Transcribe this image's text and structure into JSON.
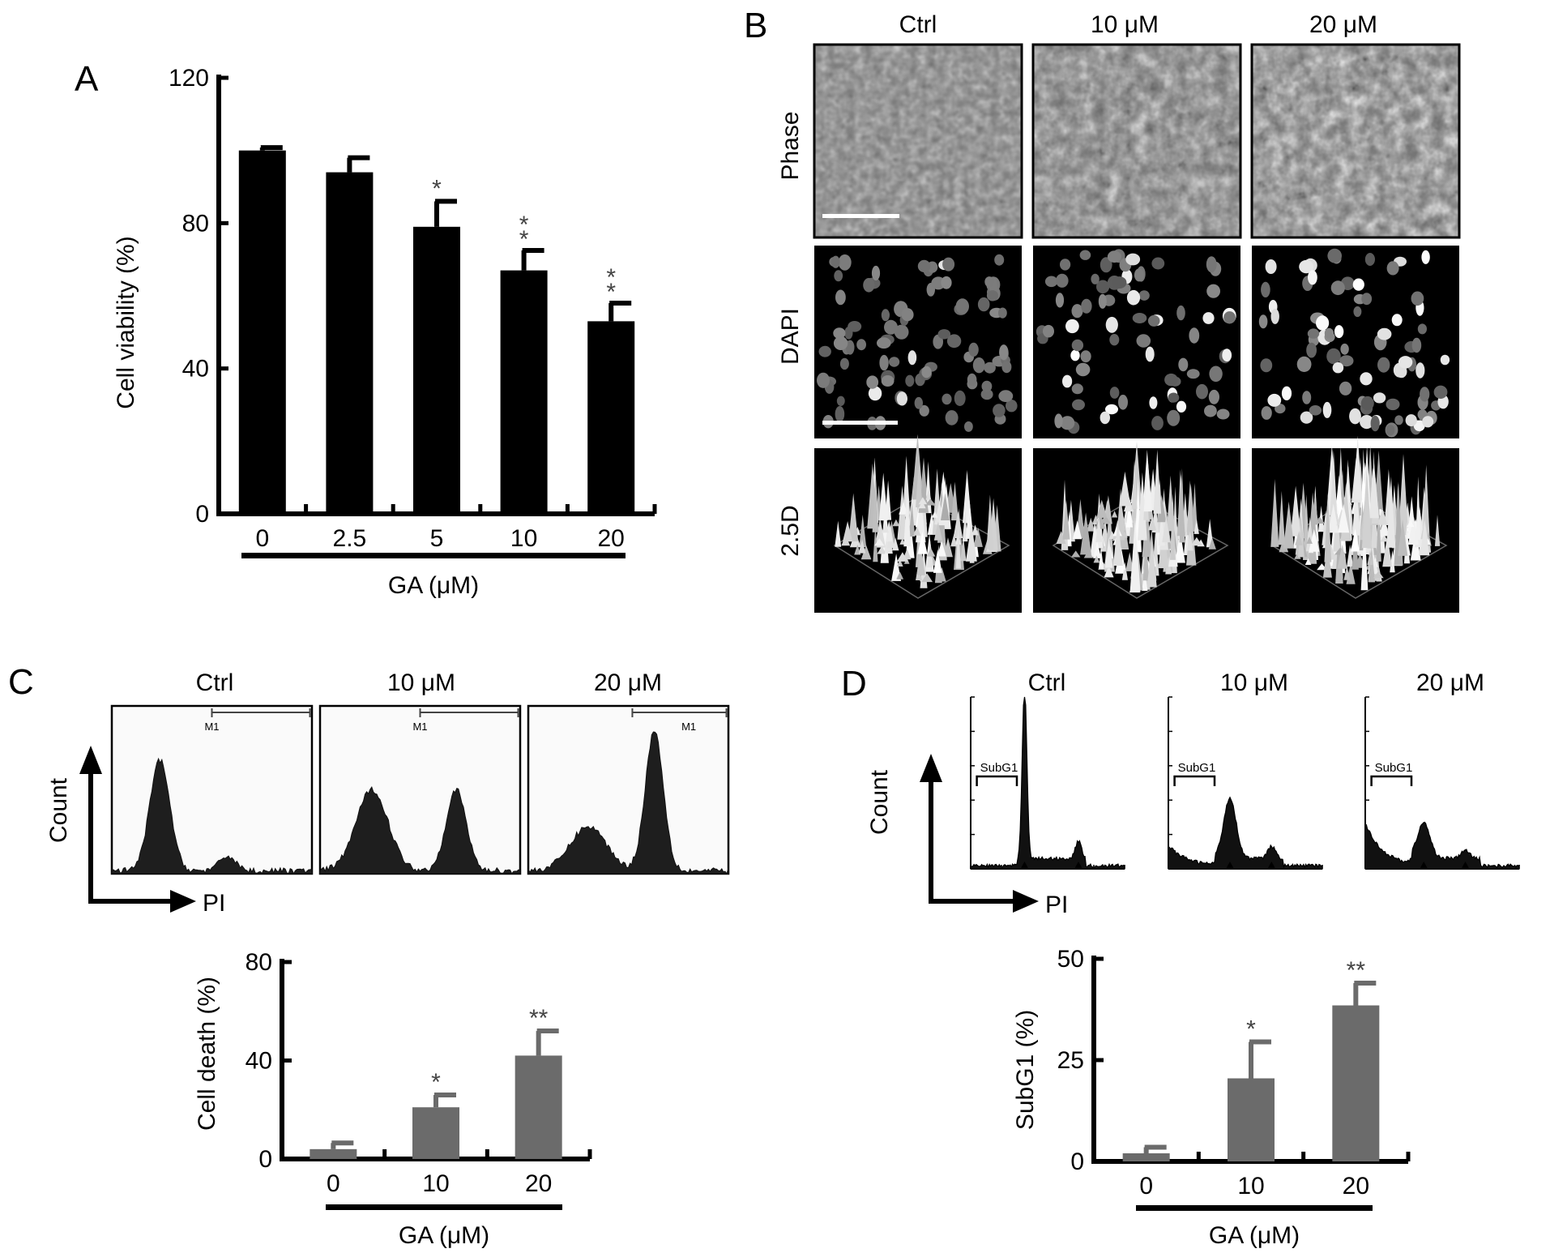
{
  "panel_letters": {
    "a": "A",
    "b": "B",
    "c": "C",
    "d": "D"
  },
  "x_group_label": "GA (μM)",
  "chart_data": [
    {
      "panel": "A",
      "type": "bar",
      "ylabel": "Cell viability (%)",
      "xlabel": "GA (μM)",
      "ylim": [
        0,
        120
      ],
      "yticks": [
        0,
        40,
        80,
        120
      ],
      "categories": [
        "0",
        "2.5",
        "5",
        "10",
        "20"
      ],
      "values": [
        100,
        94,
        79,
        67,
        53
      ],
      "errors": [
        0.8,
        4,
        7,
        5.5,
        5
      ],
      "significance": [
        "",
        "",
        "*",
        "**",
        "**"
      ],
      "sig_stacked": true,
      "bar_color": "#000000"
    },
    {
      "panel": "C",
      "type": "bar",
      "ylabel": "Cell death (%)",
      "xlabel": "GA (μM)",
      "ylim": [
        0,
        80
      ],
      "yticks": [
        0,
        40,
        80
      ],
      "categories": [
        "0",
        "10",
        "20"
      ],
      "values": [
        4,
        21,
        42
      ],
      "errors": [
        2.5,
        5,
        10
      ],
      "significance": [
        "",
        "*",
        "**"
      ],
      "sig_stacked": false,
      "bar_color": "#6b6b6b"
    },
    {
      "panel": "D",
      "type": "bar",
      "ylabel": "SubG1 (%)",
      "xlabel": "GA (μM)",
      "ylim": [
        0,
        50
      ],
      "yticks": [
        0,
        25,
        50
      ],
      "categories": [
        "0",
        "10",
        "20"
      ],
      "values": [
        2,
        20.5,
        38.5
      ],
      "errors": [
        1.5,
        9,
        5.5
      ],
      "significance": [
        "",
        "*",
        "**"
      ],
      "sig_stacked": false,
      "bar_color": "#6b6b6b"
    }
  ],
  "panel_b": {
    "columns": [
      "Ctrl",
      "10 μM",
      "20 μM"
    ],
    "rows": [
      "Phase",
      "DAPI",
      "2.5D"
    ]
  },
  "panel_c_histograms": {
    "titles": [
      "Ctrl",
      "10 μM",
      "20 μM"
    ],
    "gate_label": "M1",
    "y_axis": "Count",
    "x_axis": "PI"
  },
  "panel_d_histograms": {
    "titles": [
      "Ctrl",
      "10 μM",
      "20 μM"
    ],
    "gate_label": "SubG1",
    "y_axis": "Count",
    "x_axis": "PI"
  }
}
